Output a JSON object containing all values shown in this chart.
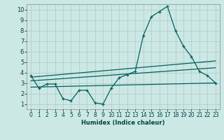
{
  "xlabel": "Humidex (Indice chaleur)",
  "background_color": "#cce8e4",
  "grid_color": "#b0c8c4",
  "line_color": "#006060",
  "xlim": [
    -0.5,
    23.5
  ],
  "ylim": [
    0.5,
    10.5
  ],
  "xticks": [
    0,
    1,
    2,
    3,
    4,
    5,
    6,
    7,
    8,
    9,
    10,
    11,
    12,
    13,
    14,
    15,
    16,
    17,
    18,
    19,
    20,
    21,
    22,
    23
  ],
  "yticks": [
    1,
    2,
    3,
    4,
    5,
    6,
    7,
    8,
    9,
    10
  ],
  "main_x": [
    0,
    1,
    2,
    3,
    4,
    5,
    6,
    7,
    8,
    9,
    10,
    11,
    12,
    13,
    14,
    15,
    16,
    17,
    18,
    19,
    20,
    21,
    22,
    23
  ],
  "main_y": [
    3.7,
    2.5,
    2.9,
    2.9,
    1.5,
    1.3,
    2.3,
    2.3,
    1.1,
    1.0,
    2.5,
    3.5,
    3.8,
    4.1,
    7.5,
    9.3,
    9.8,
    10.3,
    8.0,
    6.5,
    5.5,
    4.1,
    3.7,
    3.0
  ],
  "trend1_x": [
    0,
    23
  ],
  "trend1_y": [
    3.55,
    5.1
  ],
  "trend2_x": [
    0,
    23
  ],
  "trend2_y": [
    3.2,
    4.45
  ],
  "trend3_x": [
    0,
    23
  ],
  "trend3_y": [
    2.6,
    3.0
  ]
}
